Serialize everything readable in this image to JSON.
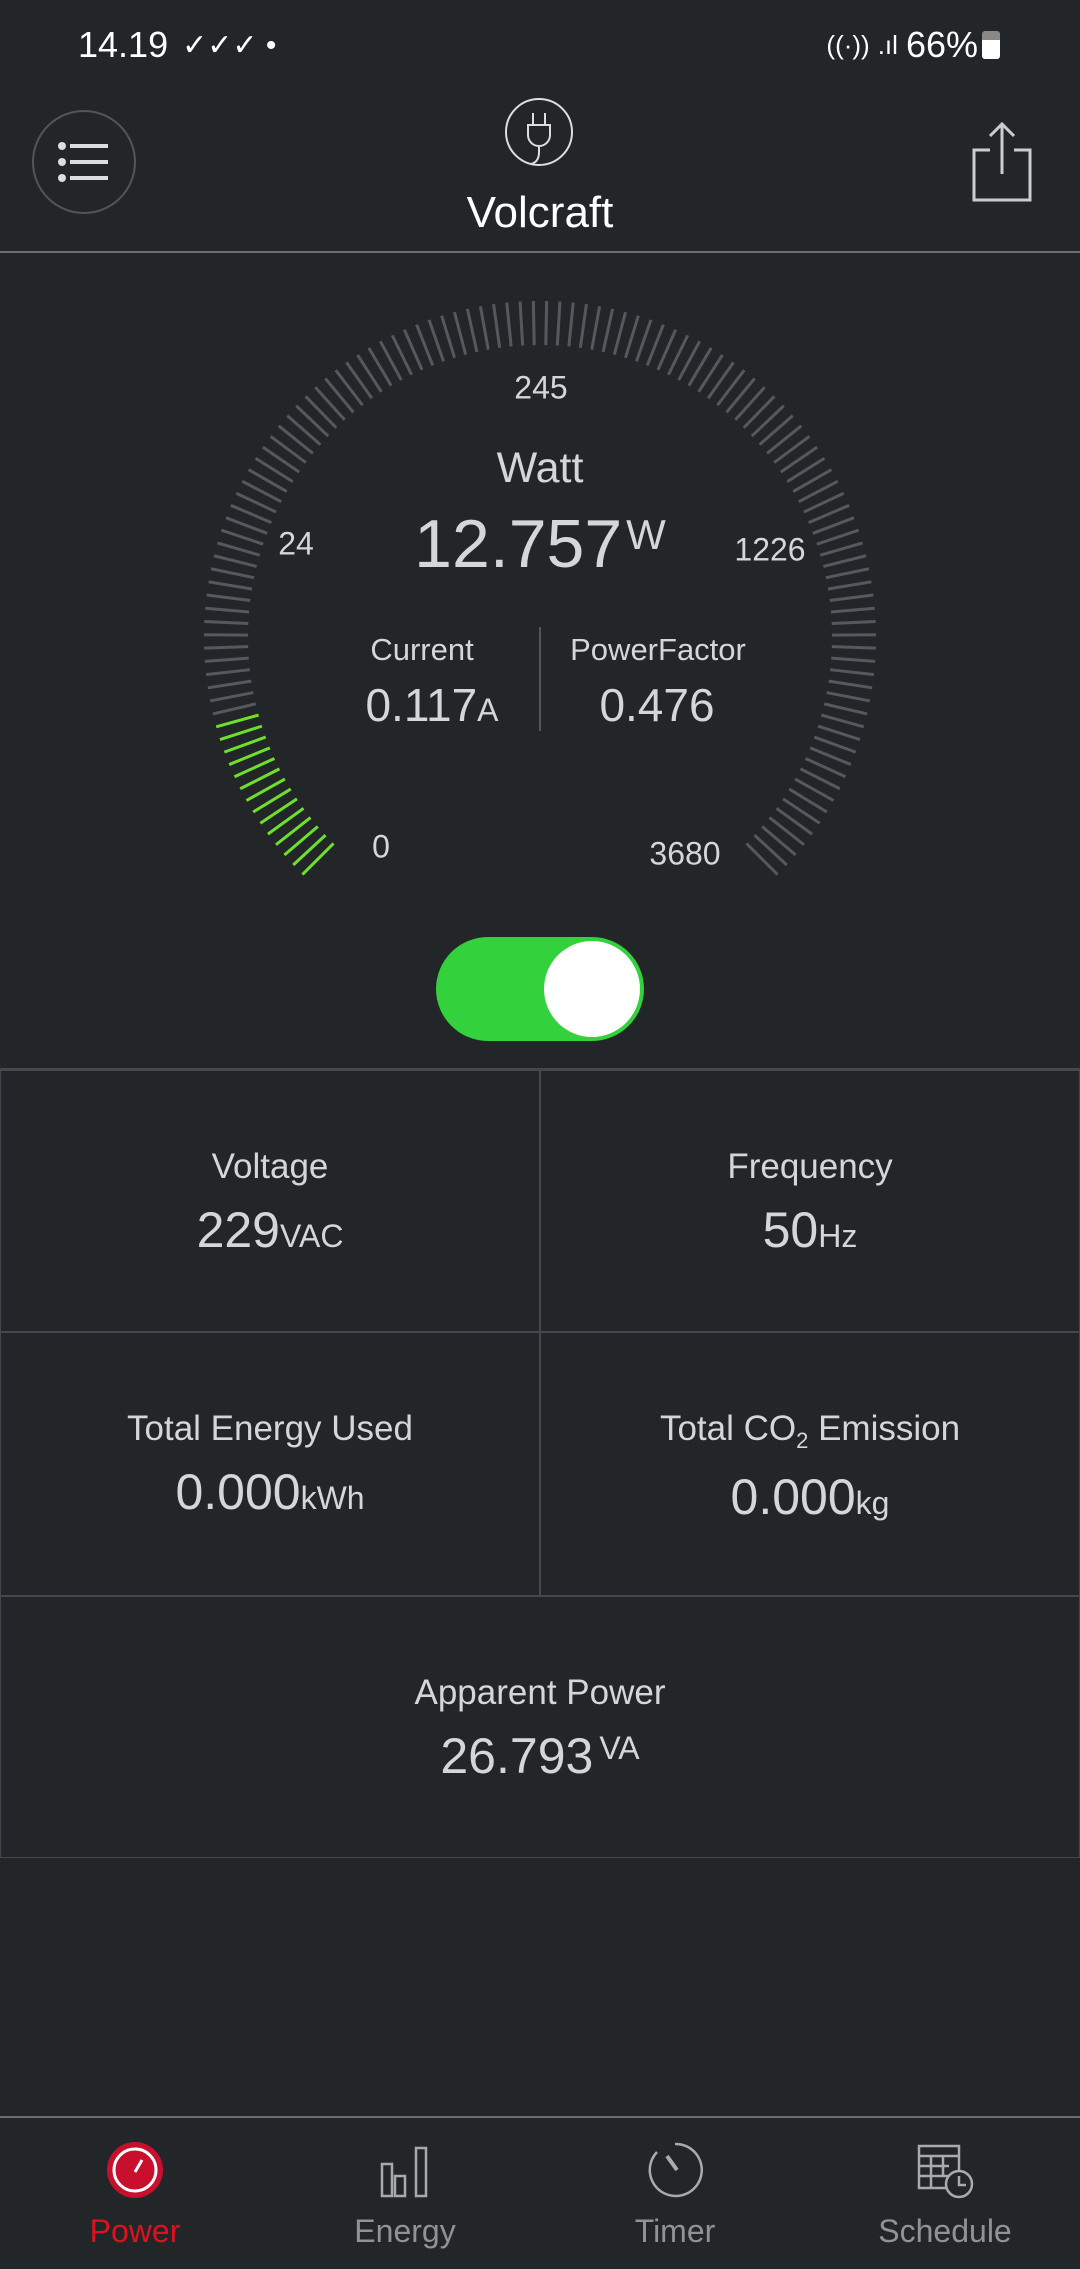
{
  "status_bar": {
    "time": "14.19",
    "battery": "66%",
    "icons": [
      "notification-icon",
      "notification-icon",
      "notification-icon",
      "wifi-icon",
      "signal-icon",
      "battery-icon"
    ]
  },
  "header": {
    "title": "Volcraft",
    "menu_icon": "list-icon",
    "device_icon": "plug-icon",
    "share_icon": "share-icon"
  },
  "gauge": {
    "title": "Watt",
    "value": "12.757",
    "unit": "W",
    "scale_labels": [
      "0",
      "24",
      "245",
      "1226",
      "3680"
    ],
    "fill_fraction": 0.115,
    "fill_color": "#6ee02a",
    "track_color": "#55595d",
    "current": {
      "label": "Current",
      "value": "0.117",
      "unit": "A"
    },
    "power_factor": {
      "label": "PowerFactor",
      "value": "0.476"
    }
  },
  "toggle": {
    "on": true,
    "color": "#33d13b"
  },
  "metrics": [
    {
      "label": "Voltage",
      "value": "229",
      "unit": "VAC"
    },
    {
      "label": "Frequency",
      "value": "50",
      "unit": "Hz"
    },
    {
      "label": "Total Energy Used",
      "value": "0.000",
      "unit": "kWh"
    },
    {
      "label_pre": "Total CO",
      "label_sub": "2",
      "label_post": " Emission",
      "value": "0.000",
      "unit": "kg"
    },
    {
      "label": "Apparent Power",
      "value": "26.793",
      "unit": "VA"
    }
  ],
  "nav": [
    {
      "label": "Power",
      "icon": "gauge-icon",
      "active": true
    },
    {
      "label": "Energy",
      "icon": "bar-chart-icon"
    },
    {
      "label": "Timer",
      "icon": "timer-icon"
    },
    {
      "label": "Schedule",
      "icon": "calendar-clock-icon"
    }
  ],
  "colors": {
    "accent": "#c8102e",
    "active_label": "#e0101e",
    "background": "#222629"
  }
}
